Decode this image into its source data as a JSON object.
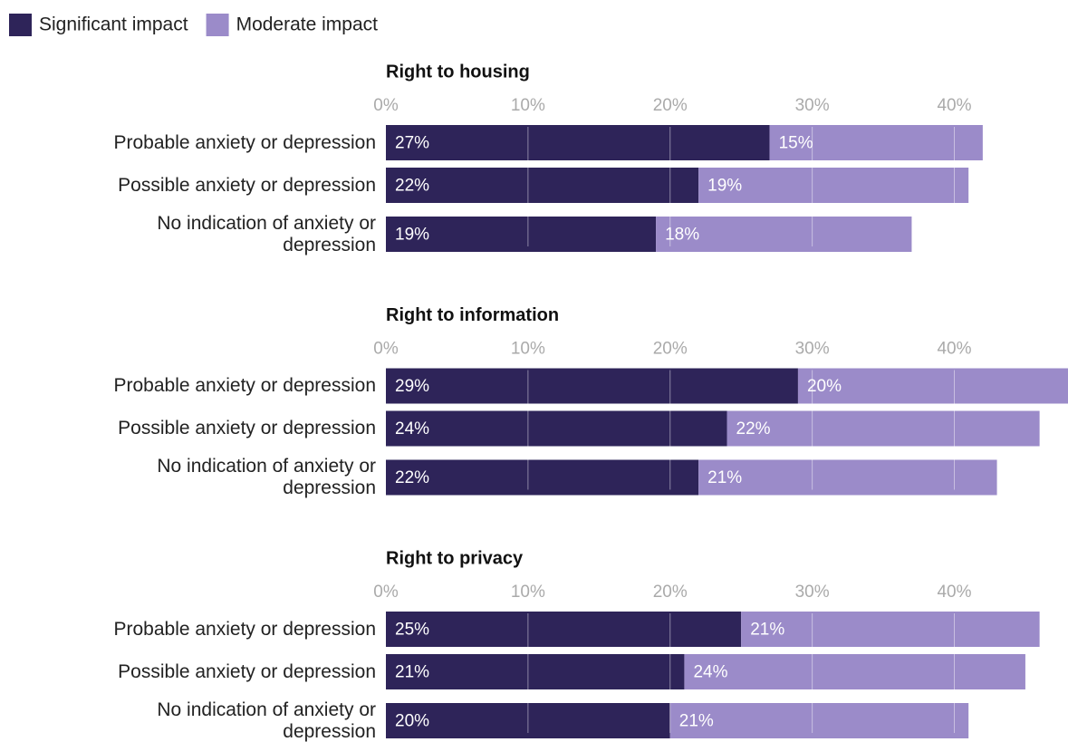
{
  "chart_data": [
    {
      "type": "bar",
      "stacked": true,
      "orientation": "horizontal",
      "title": "Right to housing",
      "categories": [
        "Probable anxiety or depression",
        "Possible anxiety or depression",
        "No indication of anxiety or depression"
      ],
      "series": [
        {
          "name": "Significant impact",
          "color": "#2e2459",
          "values": [
            27,
            22,
            19
          ],
          "value_labels": [
            "27%",
            "22%",
            "19%"
          ]
        },
        {
          "name": "Moderate impact",
          "color": "#9b8bc9",
          "values": [
            15,
            19,
            18
          ],
          "value_labels": [
            "15%",
            "19%",
            "18%"
          ]
        }
      ],
      "xlim": [
        0,
        48
      ],
      "xticks": [
        {
          "value": 0,
          "label": "0%"
        },
        {
          "value": 10,
          "label": "10%"
        },
        {
          "value": 20,
          "label": "20%"
        },
        {
          "value": 30,
          "label": "30%"
        },
        {
          "value": 40,
          "label": "40%"
        }
      ],
      "grid": true
    },
    {
      "type": "bar",
      "stacked": true,
      "orientation": "horizontal",
      "title": "Right to information",
      "categories": [
        "Probable anxiety or depression",
        "Possible anxiety or depression",
        "No indication of anxiety or depression"
      ],
      "series": [
        {
          "name": "Significant impact",
          "color": "#2e2459",
          "values": [
            29,
            24,
            22
          ],
          "value_labels": [
            "29%",
            "24%",
            "22%"
          ]
        },
        {
          "name": "Moderate impact",
          "color": "#9b8bc9",
          "values": [
            20,
            22,
            21
          ],
          "value_labels": [
            "20%",
            "22%",
            "21%"
          ]
        }
      ],
      "xlim": [
        0,
        48
      ],
      "xticks": [
        {
          "value": 0,
          "label": "0%"
        },
        {
          "value": 10,
          "label": "10%"
        },
        {
          "value": 20,
          "label": "20%"
        },
        {
          "value": 30,
          "label": "30%"
        },
        {
          "value": 40,
          "label": "40%"
        }
      ],
      "grid": true
    },
    {
      "type": "bar",
      "stacked": true,
      "orientation": "horizontal",
      "title": "Right to privacy",
      "categories": [
        "Probable anxiety or depression",
        "Possible anxiety or depression",
        "No indication of anxiety or depression"
      ],
      "series": [
        {
          "name": "Significant impact",
          "color": "#2e2459",
          "values": [
            25,
            21,
            20
          ],
          "value_labels": [
            "25%",
            "21%",
            "20%"
          ]
        },
        {
          "name": "Moderate impact",
          "color": "#9b8bc9",
          "values": [
            21,
            24,
            21
          ],
          "value_labels": [
            "21%",
            "24%",
            "21%"
          ]
        }
      ],
      "xlim": [
        0,
        48
      ],
      "xticks": [
        {
          "value": 0,
          "label": "0%"
        },
        {
          "value": 10,
          "label": "10%"
        },
        {
          "value": 20,
          "label": "20%"
        },
        {
          "value": 30,
          "label": "30%"
        },
        {
          "value": 40,
          "label": "40%"
        }
      ],
      "grid": true
    }
  ]
}
